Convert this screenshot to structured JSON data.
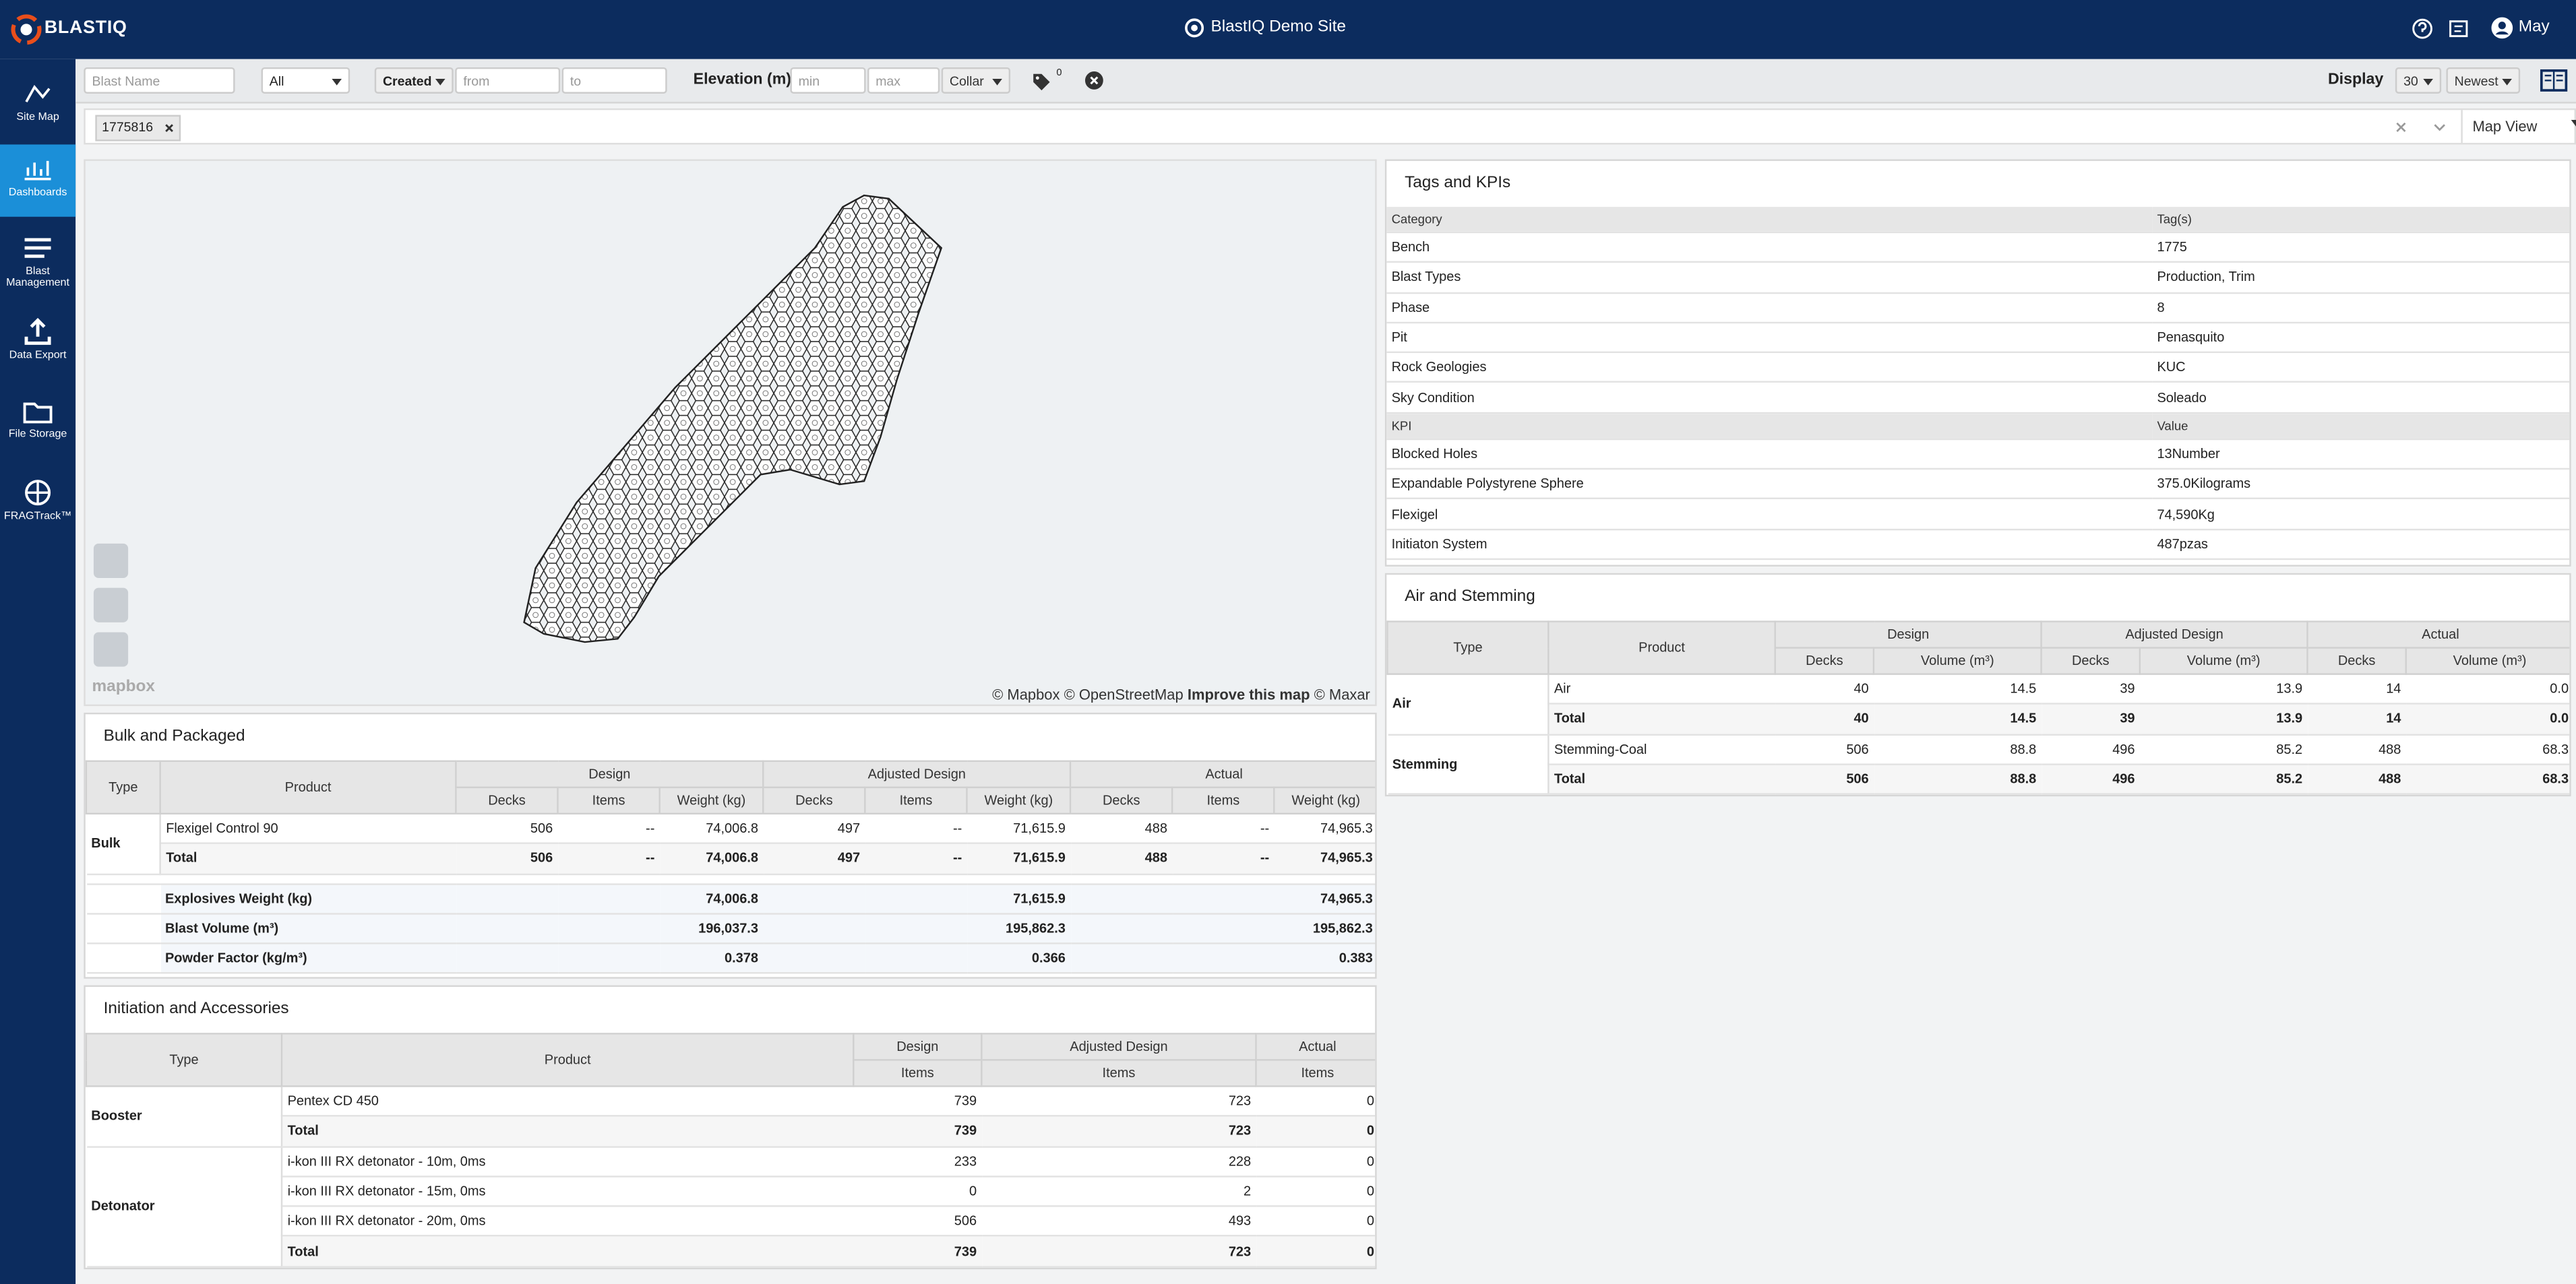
{
  "header": {
    "logo": "BLASTIQ",
    "site": "BlastIQ Demo Site",
    "user": "May"
  },
  "sidebar": [
    "Site Map",
    "Dashboards",
    "Blast Management",
    "Data Export",
    "File Storage",
    "FRAGTrack™"
  ],
  "filters": {
    "blast_name": "Blast Name",
    "blast_type": "All",
    "date_field": "Created",
    "from": "from",
    "to": "to",
    "elevation": "Elevation (m)",
    "min": "min",
    "max": "max",
    "elevation_ref": "Collar",
    "tag_count": "0",
    "display": "Display",
    "page_size": "30",
    "sort": "Newest"
  },
  "selection": {
    "chip": "1775816",
    "view": "Map View"
  },
  "map": {
    "logo": "mapbox",
    "attribution": "© Mapbox © OpenStreetMap",
    "improve": "Improve this map",
    "imagery": "© Maxar"
  },
  "bulk": {
    "title": "Bulk and Packaged",
    "columns": [
      "Type",
      "Product"
    ],
    "groups": [
      "Design",
      "Adjusted Design",
      "Actual"
    ],
    "subcolumns": [
      "Decks",
      "Items",
      "Weight (kg)"
    ],
    "sections": [
      {
        "type": "Bulk",
        "rows": [
          [
            "Flexigel Control 90",
            "506",
            "--",
            "74,006.8",
            "497",
            "--",
            "71,615.9",
            "488",
            "--",
            "74,965.3"
          ],
          [
            "Total",
            "506",
            "--",
            "74,006.8",
            "497",
            "--",
            "71,615.9",
            "488",
            "--",
            "74,965.3"
          ]
        ]
      }
    ],
    "summary": [
      [
        "Explosives Weight (kg)",
        "74,006.8",
        "71,615.9",
        "74,965.3"
      ],
      [
        "Blast Volume (m³)",
        "196,037.3",
        "195,862.3",
        "195,862.3"
      ],
      [
        "Powder Factor (kg/m³)",
        "0.378",
        "0.366",
        "0.383"
      ]
    ]
  },
  "tags": {
    "title": "Tags and KPIs",
    "header": [
      "Category",
      "Tag(s)"
    ],
    "rows": [
      [
        "Bench",
        "1775"
      ],
      [
        "Blast Types",
        "Production, Trim"
      ],
      [
        "Phase",
        "8"
      ],
      [
        "Pit",
        "Penasquito"
      ],
      [
        "Rock Geologies",
        "KUC"
      ],
      [
        "Sky Condition",
        "Soleado"
      ]
    ],
    "kpi_header": [
      "KPI",
      "Value"
    ],
    "kpi_rows": [
      [
        "Blocked Holes",
        "13Number"
      ],
      [
        "Expandable Polystyrene Sphere",
        "375.0Kilograms"
      ],
      [
        "Flexigel",
        "74,590Kg"
      ],
      [
        "Initiaton System",
        "487pzas"
      ]
    ]
  },
  "air": {
    "title": "Air and Stemming",
    "columns": [
      "Type",
      "Product"
    ],
    "groups": [
      "Design",
      "Adjusted Design",
      "Actual"
    ],
    "subcolumns": [
      "Decks",
      "Volume (m³)"
    ],
    "sections": [
      {
        "type": "Air",
        "rows": [
          [
            "Air",
            "40",
            "14.5",
            "39",
            "13.9",
            "14",
            "0.0"
          ],
          [
            "Total",
            "40",
            "14.5",
            "39",
            "13.9",
            "14",
            "0.0"
          ]
        ]
      },
      {
        "type": "Stemming",
        "rows": [
          [
            "Stemming-Coal",
            "506",
            "88.8",
            "496",
            "85.2",
            "488",
            "68.3"
          ],
          [
            "Total",
            "506",
            "88.8",
            "496",
            "85.2",
            "488",
            "68.3"
          ]
        ]
      }
    ]
  },
  "initiation": {
    "title": "Initiation and Accessories",
    "columns": [
      "Type",
      "Product"
    ],
    "groups": [
      "Design",
      "Adjusted Design",
      "Actual"
    ],
    "subcolumns": [
      "Items"
    ],
    "sections": [
      {
        "type": "Booster",
        "rows": [
          [
            "Pentex CD 450",
            "739",
            "723",
            "0"
          ],
          [
            "Total",
            "739",
            "723",
            "0"
          ]
        ]
      },
      {
        "type": "Detonator",
        "rows": [
          [
            "i-kon III RX detonator - 10m, 0ms",
            "233",
            "228",
            "0"
          ],
          [
            "i-kon III RX detonator - 15m, 0ms",
            "0",
            "2",
            "0"
          ],
          [
            "i-kon III RX detonator - 20m, 0ms",
            "506",
            "493",
            "0"
          ],
          [
            "Total",
            "739",
            "723",
            "0"
          ]
        ]
      }
    ]
  }
}
